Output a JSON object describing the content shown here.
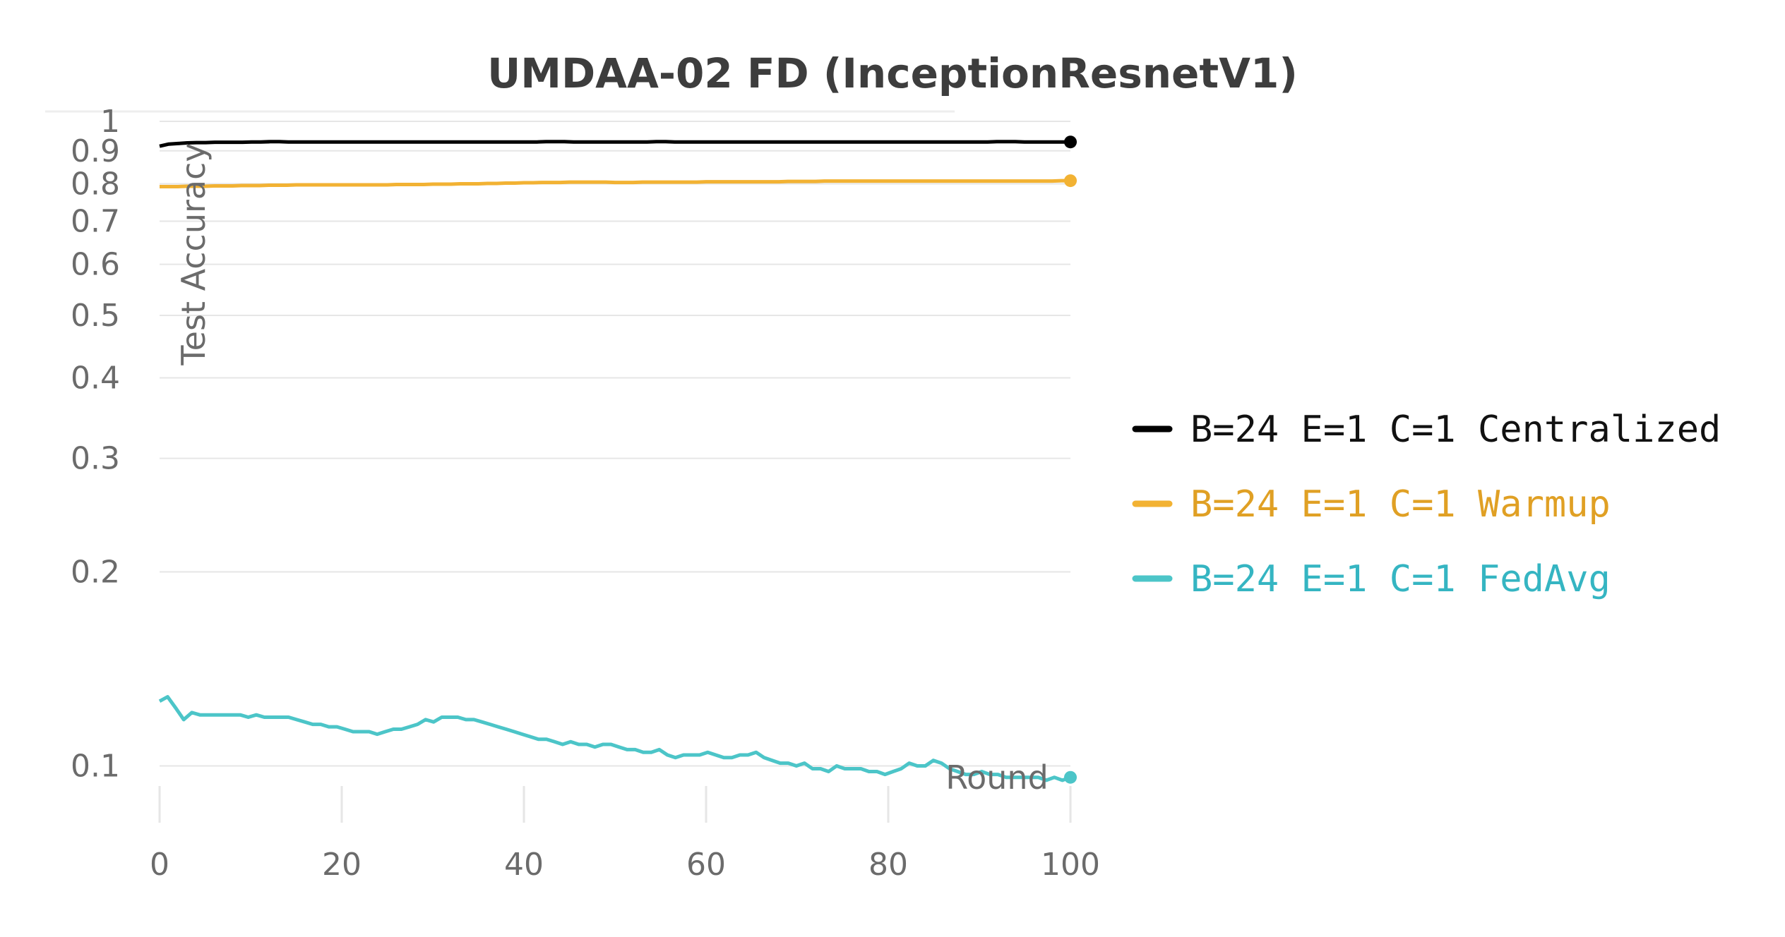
{
  "chart_data": {
    "type": "line",
    "title": "UMDAA-02 FD (InceptionResnetV1)",
    "xlabel": "Round",
    "ylabel": "Test Accuracy",
    "yscale": "log",
    "xlim": [
      0,
      100
    ],
    "ylim": [
      0.085,
      1.0
    ],
    "x_ticks": [
      0,
      20,
      40,
      60,
      80,
      100
    ],
    "y_ticks": [
      1,
      0.9,
      0.8,
      0.7,
      0.6,
      0.5,
      0.4,
      0.3,
      0.2,
      0.1
    ],
    "y_tick_labels": [
      "1",
      "0.9",
      "0.8",
      "0.7",
      "0.6",
      "0.5",
      "0.4",
      "0.3",
      "0.2",
      "0.1"
    ],
    "x_tick_labels": [
      "0",
      "20",
      "40",
      "60",
      "80",
      "100"
    ],
    "series": [
      {
        "name": "B=24 E=1 C=1 Centralized",
        "color": "#000000",
        "x_start": 0,
        "values": [
          0.915,
          0.922,
          0.924,
          0.926,
          0.927,
          0.927,
          0.928,
          0.928,
          0.928,
          0.928,
          0.929,
          0.929,
          0.93,
          0.93,
          0.929,
          0.929,
          0.929,
          0.929,
          0.929,
          0.929,
          0.929,
          0.929,
          0.929,
          0.929,
          0.929,
          0.929,
          0.929,
          0.929,
          0.929,
          0.929,
          0.929,
          0.929,
          0.929,
          0.929,
          0.929,
          0.929,
          0.929,
          0.929,
          0.929,
          0.929,
          0.929,
          0.929,
          0.93,
          0.93,
          0.93,
          0.929,
          0.929,
          0.929,
          0.929,
          0.929,
          0.929,
          0.929,
          0.929,
          0.929,
          0.93,
          0.93,
          0.929,
          0.929,
          0.929,
          0.929,
          0.929,
          0.929,
          0.929,
          0.929,
          0.929,
          0.929,
          0.929,
          0.929,
          0.929,
          0.929,
          0.929,
          0.929,
          0.929,
          0.929,
          0.929,
          0.929,
          0.929,
          0.929,
          0.929,
          0.929,
          0.929,
          0.929,
          0.929,
          0.929,
          0.929,
          0.929,
          0.929,
          0.929,
          0.929,
          0.929,
          0.929,
          0.93,
          0.93,
          0.93,
          0.929,
          0.929,
          0.929,
          0.929,
          0.929,
          0.929
        ]
      },
      {
        "name": "B=24 E=1 C=1 Warmup",
        "color": "#f2b233",
        "x_start": 0,
        "values": [
          0.792,
          0.792,
          0.792,
          0.793,
          0.793,
          0.793,
          0.794,
          0.794,
          0.794,
          0.795,
          0.795,
          0.795,
          0.796,
          0.796,
          0.796,
          0.797,
          0.797,
          0.797,
          0.797,
          0.797,
          0.797,
          0.797,
          0.797,
          0.797,
          0.797,
          0.797,
          0.798,
          0.798,
          0.798,
          0.798,
          0.799,
          0.799,
          0.799,
          0.8,
          0.8,
          0.8,
          0.801,
          0.801,
          0.802,
          0.802,
          0.803,
          0.803,
          0.804,
          0.804,
          0.804,
          0.805,
          0.805,
          0.805,
          0.805,
          0.805,
          0.804,
          0.804,
          0.804,
          0.805,
          0.805,
          0.805,
          0.805,
          0.805,
          0.805,
          0.805,
          0.806,
          0.806,
          0.806,
          0.806,
          0.806,
          0.806,
          0.806,
          0.806,
          0.806,
          0.807,
          0.807,
          0.807,
          0.807,
          0.808,
          0.808,
          0.808,
          0.808,
          0.808,
          0.808,
          0.808,
          0.808,
          0.808,
          0.808,
          0.808,
          0.808,
          0.808,
          0.808,
          0.808,
          0.808,
          0.808,
          0.808,
          0.808,
          0.808,
          0.808,
          0.808,
          0.808,
          0.808,
          0.808,
          0.808,
          0.809,
          0.809
        ]
      },
      {
        "name": "B=24 E=1 C=1 FedAvg",
        "color": "#4cc5c8",
        "x_start": 0,
        "values": [
          0.126,
          0.128,
          0.123,
          0.118,
          0.121,
          0.12,
          0.12,
          0.12,
          0.12,
          0.12,
          0.12,
          0.119,
          0.12,
          0.119,
          0.119,
          0.119,
          0.119,
          0.118,
          0.117,
          0.116,
          0.116,
          0.115,
          0.115,
          0.114,
          0.113,
          0.113,
          0.113,
          0.112,
          0.113,
          0.114,
          0.114,
          0.115,
          0.116,
          0.118,
          0.117,
          0.119,
          0.119,
          0.119,
          0.118,
          0.118,
          0.117,
          0.116,
          0.115,
          0.114,
          0.113,
          0.112,
          0.111,
          0.11,
          0.11,
          0.109,
          0.108,
          0.109,
          0.108,
          0.108,
          0.107,
          0.108,
          0.108,
          0.107,
          0.106,
          0.106,
          0.105,
          0.105,
          0.106,
          0.104,
          0.103,
          0.104,
          0.104,
          0.104,
          0.105,
          0.104,
          0.103,
          0.103,
          0.104,
          0.104,
          0.105,
          0.103,
          0.102,
          0.101,
          0.101,
          0.1,
          0.101,
          0.099,
          0.099,
          0.098,
          0.1,
          0.099,
          0.099,
          0.099,
          0.098,
          0.098,
          0.097,
          0.098,
          0.099,
          0.101,
          0.1,
          0.1,
          0.102,
          0.101,
          0.099,
          0.098,
          0.097,
          0.097,
          0.098,
          0.097,
          0.097,
          0.096,
          0.096,
          0.096,
          0.096,
          0.096,
          0.095,
          0.096,
          0.095,
          0.096
        ]
      }
    ],
    "legend_placement": "right"
  }
}
